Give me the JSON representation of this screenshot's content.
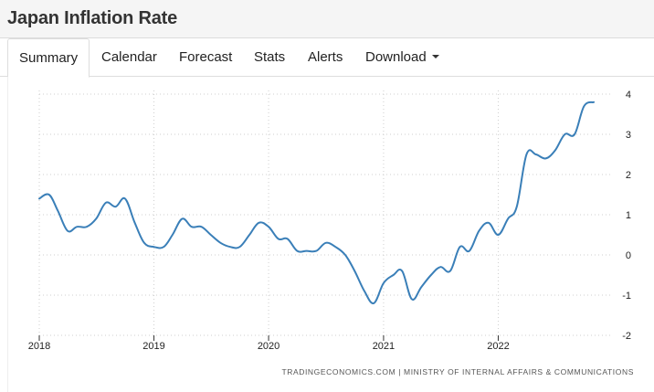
{
  "header": {
    "title": "Japan Inflation Rate"
  },
  "tabs": [
    {
      "label": "Summary",
      "active": true
    },
    {
      "label": "Calendar",
      "active": false
    },
    {
      "label": "Forecast",
      "active": false
    },
    {
      "label": "Stats",
      "active": false
    },
    {
      "label": "Alerts",
      "active": false
    },
    {
      "label": "Download",
      "active": false,
      "dropdown": true
    }
  ],
  "source": "TRADINGECONOMICS.COM  |  MINISTRY OF INTERNAL AFFAIRS & COMMUNICATIONS",
  "chart_data": {
    "type": "line",
    "title": "",
    "xlabel": "",
    "ylabel": "",
    "line_color": "#3a7fb8",
    "grid": true,
    "y_axis_position": "right",
    "ylim": [
      -2,
      4
    ],
    "yticks": [
      -2,
      -1,
      0,
      1,
      2,
      3,
      4
    ],
    "xticks": [
      "2018",
      "2019",
      "2020",
      "2021",
      "2022"
    ],
    "series": [
      {
        "x": [
          "2018-01",
          "2018-02",
          "2018-03",
          "2018-04",
          "2018-05",
          "2018-06",
          "2018-07",
          "2018-08",
          "2018-09",
          "2018-10",
          "2018-11",
          "2018-12",
          "2019-01",
          "2019-02",
          "2019-03",
          "2019-04",
          "2019-05",
          "2019-06",
          "2019-07",
          "2019-08",
          "2019-09",
          "2019-10",
          "2019-11",
          "2019-12",
          "2020-01",
          "2020-02",
          "2020-03",
          "2020-04",
          "2020-05",
          "2020-06",
          "2020-07",
          "2020-08",
          "2020-09",
          "2020-10",
          "2020-11",
          "2020-12",
          "2021-01",
          "2021-02",
          "2021-03",
          "2021-04",
          "2021-05",
          "2021-06",
          "2021-07",
          "2021-08",
          "2021-09",
          "2021-10",
          "2021-11",
          "2021-12",
          "2022-01",
          "2022-02",
          "2022-03",
          "2022-04",
          "2022-05",
          "2022-06",
          "2022-07",
          "2022-08",
          "2022-09",
          "2022-10",
          "2022-11"
        ],
        "values": [
          1.4,
          1.5,
          1.1,
          0.6,
          0.7,
          0.7,
          0.9,
          1.3,
          1.2,
          1.4,
          0.8,
          0.3,
          0.2,
          0.2,
          0.5,
          0.9,
          0.7,
          0.7,
          0.5,
          0.3,
          0.2,
          0.2,
          0.5,
          0.8,
          0.7,
          0.4,
          0.4,
          0.1,
          0.1,
          0.1,
          0.3,
          0.2,
          0.0,
          -0.4,
          -0.9,
          -1.2,
          -0.7,
          -0.5,
          -0.4,
          -1.1,
          -0.8,
          -0.5,
          -0.3,
          -0.4,
          0.2,
          0.1,
          0.6,
          0.8,
          0.5,
          0.9,
          1.2,
          2.5,
          2.5,
          2.4,
          2.6,
          3.0,
          3.0,
          3.7,
          3.8
        ]
      }
    ]
  }
}
